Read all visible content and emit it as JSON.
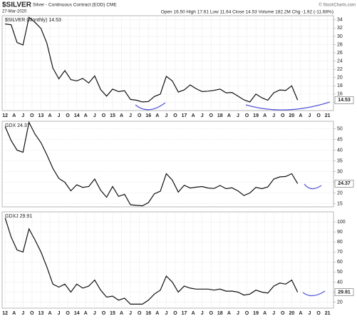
{
  "header": {
    "symbol": "$SILVER",
    "name": "Silver - Continuous Contract (EOD) CME",
    "date": "27-Mar-2020",
    "quote": "Open 16.50 High 17.61 Low 11.64 Close 14.53 Volume 182.2M Chg -1.92 (-11.68%)",
    "brand": "© StockCharts.com"
  },
  "chart_data": [
    {
      "type": "line",
      "grid": true,
      "xlim": [
        -1,
        110
      ],
      "ylim": [
        12,
        35
      ],
      "yticks": [
        14,
        16,
        18,
        20,
        22,
        24,
        26,
        28,
        30,
        32,
        34
      ],
      "xticks": [
        {
          "value": 0,
          "label": "12"
        },
        {
          "value": 3,
          "label": "A"
        },
        {
          "value": 6,
          "label": "J"
        },
        {
          "value": 9,
          "label": "O"
        },
        {
          "value": 12,
          "label": "13"
        },
        {
          "value": 15,
          "label": "A"
        },
        {
          "value": 18,
          "label": "J"
        },
        {
          "value": 21,
          "label": "O"
        },
        {
          "value": 24,
          "label": "14"
        },
        {
          "value": 27,
          "label": "A"
        },
        {
          "value": 30,
          "label": "J"
        },
        {
          "value": 33,
          "label": "O"
        },
        {
          "value": 36,
          "label": "15"
        },
        {
          "value": 39,
          "label": "A"
        },
        {
          "value": 42,
          "label": "J"
        },
        {
          "value": 45,
          "label": "O"
        },
        {
          "value": 48,
          "label": "16"
        },
        {
          "value": 51,
          "label": "A"
        },
        {
          "value": 54,
          "label": "J"
        },
        {
          "value": 57,
          "label": "O"
        },
        {
          "value": 60,
          "label": "17"
        },
        {
          "value": 63,
          "label": "A"
        },
        {
          "value": 66,
          "label": "J"
        },
        {
          "value": 69,
          "label": "O"
        },
        {
          "value": 72,
          "label": "18"
        },
        {
          "value": 75,
          "label": "A"
        },
        {
          "value": 78,
          "label": "J"
        },
        {
          "value": 81,
          "label": "O"
        },
        {
          "value": 84,
          "label": "19"
        },
        {
          "value": 87,
          "label": "A"
        },
        {
          "value": 90,
          "label": "J"
        },
        {
          "value": 93,
          "label": "O"
        },
        {
          "value": 96,
          "label": "20"
        },
        {
          "value": 99,
          "label": "A"
        },
        {
          "value": 102,
          "label": "J"
        },
        {
          "value": 105,
          "label": "O"
        },
        {
          "value": 108,
          "label": "21"
        }
      ],
      "x": [
        0,
        2,
        4,
        6,
        8,
        10,
        12,
        14,
        16,
        18,
        20,
        22,
        24,
        26,
        28,
        30,
        32,
        34,
        36,
        38,
        40,
        42,
        44,
        46,
        48,
        50,
        52,
        54,
        56,
        58,
        60,
        62,
        64,
        66,
        68,
        70,
        72,
        74,
        76,
        78,
        80,
        82,
        84,
        86,
        88,
        90,
        92,
        94,
        96,
        98
      ],
      "series": [
        {
          "name": "$SILVER (Monthly) 14.53",
          "color": "#111111",
          "values": [
            33,
            32.8,
            28.5,
            27.9,
            34.6,
            33.4,
            31.9,
            28.3,
            22.3,
            19.7,
            21.7,
            19.5,
            19.2,
            19.8,
            18.7,
            20.4,
            17.1,
            15.5,
            17.2,
            16.6,
            16.8,
            14.7,
            14.5,
            14.1,
            14.2,
            15.4,
            16.0,
            20.3,
            19.2,
            16.5,
            17.0,
            18.2,
            17.3,
            16.6,
            16.7,
            16.9,
            17.2,
            16.3,
            16.4,
            15.5,
            14.6,
            14.1,
            16.0,
            15.1,
            14.5,
            16.3,
            17.0,
            16.9,
            18.0,
            14.53
          ]
        }
      ]
    },
    {
      "type": "line",
      "grid": true,
      "xlim": [
        -1,
        110
      ],
      "ylim": [
        13.5,
        53.5
      ],
      "yticks": [
        15,
        20,
        25,
        30,
        35,
        40,
        45,
        50
      ],
      "x": [
        0,
        2,
        4,
        6,
        8,
        10,
        12,
        14,
        16,
        18,
        20,
        22,
        24,
        26,
        28,
        30,
        32,
        34,
        36,
        38,
        40,
        42,
        44,
        46,
        48,
        50,
        52,
        54,
        56,
        58,
        60,
        62,
        64,
        66,
        68,
        70,
        72,
        74,
        76,
        78,
        80,
        82,
        84,
        86,
        88,
        90,
        92,
        94,
        96,
        98
      ],
      "series": [
        {
          "name": "GDX 24.37",
          "color": "#111111",
          "values": [
            51,
            44.5,
            40,
            39,
            53,
            47.5,
            43.5,
            37.8,
            31.5,
            26.8,
            25,
            21,
            23.8,
            22.6,
            23,
            26.5,
            21.3,
            18,
            23,
            18.4,
            19.4,
            14.5,
            14.2,
            14,
            15.5,
            19.6,
            20.8,
            29,
            26,
            20.4,
            23.6,
            22.3,
            22.7,
            23,
            22.3,
            22.1,
            23.5,
            22,
            22.4,
            21,
            18.8,
            20,
            22.6,
            22,
            22.8,
            26.5,
            27.5,
            27.7,
            29,
            24.37
          ]
        }
      ]
    },
    {
      "type": "line",
      "grid": true,
      "xlim": [
        -1,
        110
      ],
      "ylim": [
        14,
        110
      ],
      "yticks": [
        20,
        30,
        40,
        50,
        60,
        70,
        80,
        90,
        100
      ],
      "xticks": [
        {
          "value": 0,
          "label": "12"
        },
        {
          "value": 3,
          "label": "A"
        },
        {
          "value": 6,
          "label": "J"
        },
        {
          "value": 9,
          "label": "O"
        },
        {
          "value": 12,
          "label": "13"
        },
        {
          "value": 15,
          "label": "A"
        },
        {
          "value": 18,
          "label": "J"
        },
        {
          "value": 21,
          "label": "O"
        },
        {
          "value": 24,
          "label": "14"
        },
        {
          "value": 27,
          "label": "A"
        },
        {
          "value": 30,
          "label": "J"
        },
        {
          "value": 33,
          "label": "O"
        },
        {
          "value": 36,
          "label": "15"
        },
        {
          "value": 39,
          "label": "A"
        },
        {
          "value": 42,
          "label": "J"
        },
        {
          "value": 45,
          "label": "O"
        },
        {
          "value": 48,
          "label": "16"
        },
        {
          "value": 51,
          "label": "A"
        },
        {
          "value": 54,
          "label": "J"
        },
        {
          "value": 57,
          "label": "O"
        },
        {
          "value": 60,
          "label": "17"
        },
        {
          "value": 63,
          "label": "A"
        },
        {
          "value": 66,
          "label": "J"
        },
        {
          "value": 69,
          "label": "O"
        },
        {
          "value": 72,
          "label": "18"
        },
        {
          "value": 75,
          "label": "A"
        },
        {
          "value": 78,
          "label": "J"
        },
        {
          "value": 81,
          "label": "O"
        },
        {
          "value": 84,
          "label": "19"
        },
        {
          "value": 87,
          "label": "A"
        },
        {
          "value": 90,
          "label": "J"
        },
        {
          "value": 93,
          "label": "O"
        },
        {
          "value": 96,
          "label": "20"
        },
        {
          "value": 99,
          "label": "A"
        },
        {
          "value": 102,
          "label": "J"
        },
        {
          "value": 105,
          "label": "O"
        },
        {
          "value": 108,
          "label": "21"
        }
      ],
      "x": [
        0,
        2,
        4,
        6,
        8,
        10,
        12,
        14,
        16,
        18,
        20,
        22,
        24,
        26,
        28,
        30,
        32,
        34,
        36,
        38,
        40,
        42,
        44,
        46,
        48,
        50,
        52,
        54,
        56,
        58,
        60,
        62,
        64,
        66,
        68,
        70,
        72,
        74,
        76,
        78,
        80,
        82,
        84,
        86,
        88,
        90,
        92,
        94,
        96,
        98
      ],
      "series": [
        {
          "name": "GDXJ 29.91",
          "color": "#111111",
          "values": [
            104,
            85,
            72,
            70,
            93,
            82,
            70,
            55,
            38,
            35,
            38,
            30,
            38,
            34,
            36,
            42,
            32,
            25,
            26,
            22,
            24,
            18,
            18,
            18,
            22,
            28,
            32,
            46,
            40,
            30,
            36,
            34,
            33,
            33,
            33,
            32,
            33,
            31,
            31,
            30,
            27,
            28,
            32,
            30,
            29,
            36,
            39,
            38,
            42,
            29.91
          ]
        }
      ]
    }
  ]
}
